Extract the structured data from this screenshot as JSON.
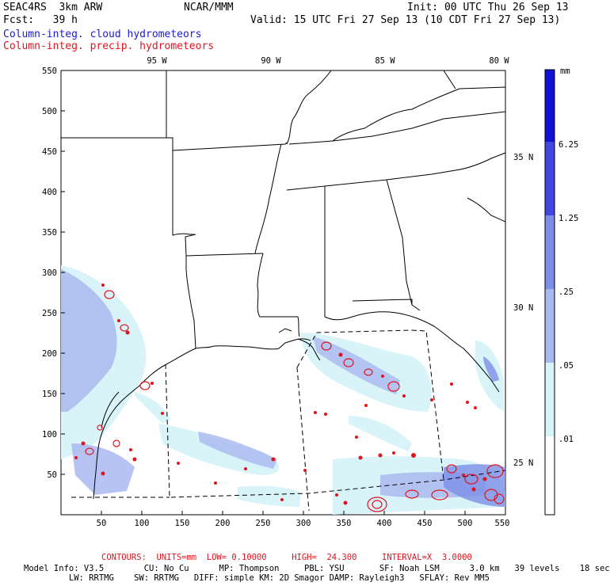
{
  "header": {
    "model": "SEAC4RS  3km ARW",
    "org": "NCAR/MMM",
    "init": "Init: 00 UTC Thu 26 Sep 13",
    "fcst": "Fcst:   39 h",
    "valid": "Valid: 15 UTC Fri 27 Sep 13 (10 CDT Fri 27 Sep 13)",
    "field_blue": "Column-integ. cloud hydrometeors",
    "field_red": "Column-integ. precip. hydrometeors"
  },
  "colors": {
    "blue_label": "#1a1ad6",
    "red_label": "#e0141e",
    "contour_red": "#e0141e",
    "shade_light": "#d8f4f8",
    "shade_0_05": "#aab8f0",
    "shade_0_25": "#7d8ee6",
    "shade_1_25": "#3f47e0",
    "shade_6_25": "#1010d8",
    "boundaries": "#000000"
  },
  "map": {
    "x_ticks": [
      "50",
      "100",
      "150",
      "200",
      "250",
      "300",
      "350",
      "400",
      "450",
      "500",
      "550"
    ],
    "y_ticks": [
      "50",
      "100",
      "150",
      "200",
      "250",
      "300",
      "350",
      "400",
      "450",
      "500",
      "550"
    ],
    "lon_labels": [
      "95 W",
      "90 W",
      "85 W",
      "80 W"
    ],
    "lat_labels": [
      "35 N",
      "30 N",
      "25 N"
    ]
  },
  "colorbar": {
    "units": "mm",
    "labels": [
      "6.25",
      "1.25",
      ".25",
      ".05",
      ".01"
    ]
  },
  "footer": {
    "contours": "CONTOURS:  UNITS=mm  LOW= 0.10000     HIGH=  24.300     INTERVAL=X  3.0000",
    "model_info_1": "Model Info: V3.5        CU: No Cu      MP: Thompson     PBL: YSU       SF: Noah LSM      3.0 km   39 levels    18 sec",
    "model_info_2": "         LW: RRTMG    SW: RRTMG   DIFF: simple KM: 2D Smagor DAMP: Rayleigh3   SFLAY: Rev MM5"
  }
}
